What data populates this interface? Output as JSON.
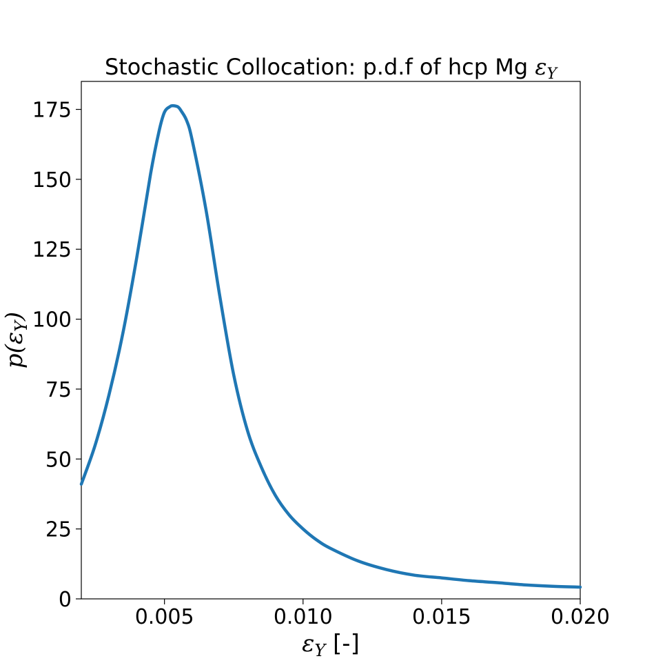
{
  "chart_data": {
    "type": "line",
    "title": "Stochastic Collocation: p.d.f of hcp Mg",
    "title_symbol": "ε",
    "title_symbol_sub": "Y",
    "xlabel_symbol": "ε",
    "xlabel_symbol_sub": "Y",
    "xlabel_unit": " [-]",
    "ylabel_prefix": "p(",
    "ylabel_symbol": "ε",
    "ylabel_symbol_sub": "Y",
    "ylabel_suffix": ")",
    "xlim": [
      0.002,
      0.02
    ],
    "ylim": [
      0,
      185
    ],
    "xticks": [
      0.005,
      0.01,
      0.015,
      0.02
    ],
    "xtick_labels": [
      "0.005",
      "0.010",
      "0.015",
      "0.020"
    ],
    "yticks": [
      0,
      25,
      50,
      75,
      100,
      125,
      150,
      175
    ],
    "ytick_labels": [
      "0",
      "25",
      "50",
      "75",
      "100",
      "125",
      "150",
      "175"
    ],
    "grid": false,
    "line_color": "#1f77b4",
    "series": [
      {
        "x": [
          0.002,
          0.0025,
          0.003,
          0.0035,
          0.004,
          0.0045,
          0.0048,
          0.005,
          0.0052,
          0.0053,
          0.0054,
          0.0055,
          0.0056,
          0.0058,
          0.006,
          0.0065,
          0.007,
          0.0075,
          0.008,
          0.0085,
          0.009,
          0.0095,
          0.01,
          0.0105,
          0.011,
          0.012,
          0.013,
          0.014,
          0.015,
          0.016,
          0.017,
          0.018,
          0.019,
          0.02
        ],
        "y": [
          41,
          55,
          73,
          95,
          122,
          152,
          167,
          174,
          176,
          176.3,
          176.2,
          175.8,
          174.5,
          171,
          164,
          139,
          108,
          80,
          60,
          47,
          37,
          30,
          25,
          21,
          18,
          13.5,
          10.5,
          8.5,
          7.5,
          6.5,
          5.8,
          5,
          4.5,
          4.2
        ]
      }
    ]
  }
}
